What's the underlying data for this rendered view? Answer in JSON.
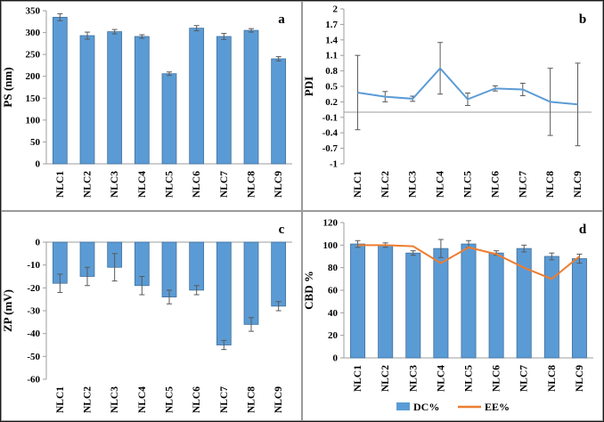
{
  "figure": {
    "panel_letters": [
      "a",
      "b",
      "c",
      "d"
    ]
  },
  "colors": {
    "axis": "#9e9e9e",
    "error": "#595959",
    "zero_line": "#bfbfbf",
    "bar_blue": "#5b9bd5",
    "bar_edge": "#41719c",
    "line_orange": "#ed7d31"
  },
  "chart_data": [
    {
      "id": "a",
      "panel_label": "a",
      "type": "bar",
      "title": "",
      "xlabel": "",
      "ylabel": "PS (nm)",
      "ylim": [
        0,
        350
      ],
      "yticks": [
        0,
        50,
        100,
        150,
        200,
        250,
        300,
        350
      ],
      "categories": [
        "NLC1",
        "NLC2",
        "NLC3",
        "NLC4",
        "NLC5",
        "NLC6",
        "NLC7",
        "NLC8",
        "NLC9"
      ],
      "series": [
        {
          "name": "PS",
          "type": "bar",
          "color": "#5b9bd5",
          "edge": "#41719c",
          "values": [
            335,
            293,
            302,
            291,
            206,
            310,
            291,
            305,
            240
          ],
          "errors": [
            8,
            8,
            5,
            4,
            4,
            6,
            7,
            4,
            5
          ]
        }
      ],
      "layout": {
        "margin": {
          "l": 50,
          "r": 10,
          "t": 10,
          "b": 52
        },
        "axis_at": 0,
        "grid": false
      }
    },
    {
      "id": "b",
      "panel_label": "b",
      "type": "line",
      "title": "",
      "xlabel": "",
      "ylabel": "PDI",
      "ylim": [
        -1,
        2
      ],
      "yticks": [
        -1,
        -0.7,
        -0.4,
        -0.1,
        0.2,
        0.5,
        0.8,
        1.1,
        1.4,
        1.7,
        2
      ],
      "ytick_labels": [
        "-1",
        "-0.7",
        "-0.4",
        "-0.1",
        "0.2",
        "0.5",
        "0.8",
        "1.1",
        "1.4",
        "1.7",
        "2"
      ],
      "categories": [
        "NLC1",
        "NLC2",
        "NLC3",
        "NLC4",
        "NLC5",
        "NLC6",
        "NLC7",
        "NLC8",
        "NLC9"
      ],
      "series": [
        {
          "name": "PDI",
          "type": "line",
          "color": "#5b9bd5",
          "values": [
            0.38,
            0.3,
            0.26,
            0.85,
            0.25,
            0.46,
            0.44,
            0.2,
            0.15
          ],
          "errors": [
            0.72,
            0.1,
            0.05,
            0.5,
            0.12,
            0.05,
            0.12,
            0.65,
            0.8
          ]
        }
      ],
      "layout": {
        "margin": {
          "l": 46,
          "r": 12,
          "t": 8,
          "b": 52
        },
        "axis_at": 0,
        "grid": false
      }
    },
    {
      "id": "c",
      "panel_label": "c",
      "type": "bar",
      "title": "",
      "xlabel": "",
      "ylabel": "ZP (mV)",
      "ylim": [
        -60,
        0
      ],
      "yticks": [
        0,
        -10,
        -20,
        -30,
        -40,
        -50,
        -60
      ],
      "categories": [
        "NLC1",
        "NLC2",
        "NLC3",
        "NLC4",
        "NLC5",
        "NLC6",
        "NLC7",
        "NLC8",
        "NLC9"
      ],
      "series": [
        {
          "name": "ZP",
          "type": "bar",
          "color": "#5b9bd5",
          "edge": "#41719c",
          "values": [
            -18,
            -15,
            -11,
            -19,
            -24,
            -21,
            -45,
            -36,
            -28
          ],
          "errors": [
            4,
            4,
            6,
            4,
            3,
            2,
            2,
            3,
            2
          ]
        }
      ],
      "layout": {
        "margin": {
          "l": 50,
          "r": 10,
          "t": 34,
          "b": 46
        },
        "axis_at": 0,
        "grid": false
      }
    },
    {
      "id": "d",
      "panel_label": "d",
      "type": "bar+line",
      "title": "",
      "xlabel": "",
      "ylabel": "CBD %",
      "ylim": [
        0,
        120
      ],
      "yticks": [
        0,
        20,
        40,
        60,
        80,
        100,
        120
      ],
      "categories": [
        "NLC1",
        "NLC2",
        "NLC3",
        "NLC4",
        "NLC5",
        "NLC6",
        "NLC7",
        "NLC8",
        "NLC9"
      ],
      "series": [
        {
          "name": "DC%",
          "type": "bar",
          "color": "#5b9bd5",
          "edge": "#41719c",
          "values": [
            101,
            100,
            93,
            97,
            101,
            93,
            97,
            90,
            88
          ],
          "errors": [
            3,
            2,
            2,
            8,
            3,
            2,
            3,
            3,
            4
          ]
        },
        {
          "name": "EE%",
          "type": "line",
          "color": "#ed7d31",
          "values": [
            100,
            100,
            99,
            84,
            98,
            92,
            80,
            70,
            90
          ]
        }
      ],
      "legend": true,
      "legend_position": "bottom",
      "layout": {
        "margin": {
          "l": 46,
          "r": 10,
          "t": 12,
          "b": 70
        },
        "axis_at": 0,
        "grid": false
      }
    }
  ]
}
